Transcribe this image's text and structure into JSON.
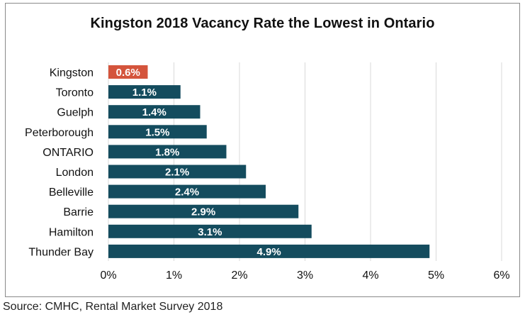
{
  "chart_data": {
    "type": "bar",
    "orientation": "horizontal",
    "title": "Kingston 2018 Vacancy Rate the Lowest in Ontario",
    "categories": [
      "Kingston",
      "Toronto",
      "Guelph",
      "Peterborough",
      "ONTARIO",
      "London",
      "Belleville",
      "Barrie",
      "Hamilton",
      "Thunder Bay"
    ],
    "values": [
      0.6,
      1.1,
      1.4,
      1.5,
      1.8,
      2.1,
      2.4,
      2.9,
      3.1,
      4.9
    ],
    "data_labels": [
      "0.6%",
      "1.1%",
      "1.4%",
      "1.5%",
      "1.8%",
      "2.1%",
      "2.4%",
      "2.9%",
      "3.1%",
      "4.9%"
    ],
    "colors": [
      "#d4543c",
      "#144c5e",
      "#144c5e",
      "#144c5e",
      "#144c5e",
      "#144c5e",
      "#144c5e",
      "#144c5e",
      "#144c5e",
      "#144c5e"
    ],
    "xlim": [
      0,
      6
    ],
    "xticks": [
      0,
      1,
      2,
      3,
      4,
      5,
      6
    ],
    "xtick_labels": [
      "0%",
      "1%",
      "2%",
      "3%",
      "4%",
      "5%",
      "6%"
    ],
    "xlabel": "",
    "ylabel": "",
    "grid": "vertical",
    "grid_color": "#d9d9d9"
  },
  "source": "Source: CMHC, Rental Market Survey 2018"
}
